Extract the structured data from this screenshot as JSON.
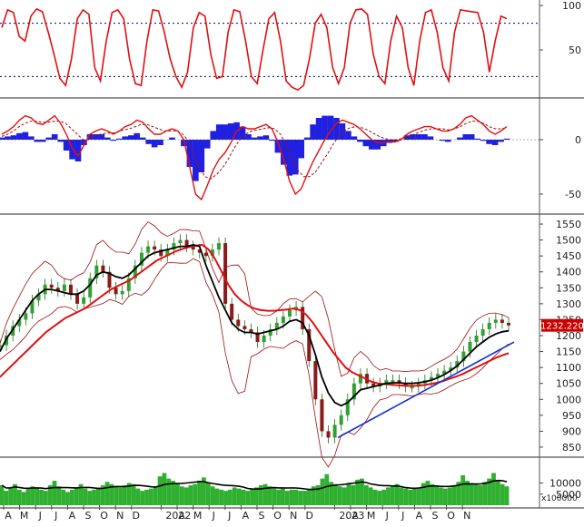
{
  "colors": {
    "background": "#ffffff",
    "separator": "#555555",
    "red_line": "#e01010",
    "dark_red_line": "#a01010",
    "black_line": "#000000",
    "blue_line": "#1030d0",
    "bar_blue": "#2020e0",
    "candle_green": "#30a030",
    "volume_green": "#30b030",
    "dotted": "#000066",
    "price_tag_bg": "#cc0000",
    "price_tag_text": "#ffffff"
  },
  "chart_data": [
    {
      "id": "stochastic",
      "type": "line",
      "y_ticks": [
        "100",
        "50"
      ],
      "ylim": [
        0,
        100
      ],
      "reference_levels": [
        80,
        20
      ],
      "series": [
        {
          "values": [
            75,
            95,
            92,
            65,
            60,
            88,
            96,
            93,
            70,
            45,
            18,
            10,
            40,
            85,
            95,
            90,
            30,
            15,
            60,
            92,
            95,
            85,
            40,
            12,
            10,
            60,
            95,
            94,
            70,
            40,
            20,
            8,
            25,
            75,
            92,
            88,
            45,
            18,
            20,
            70,
            95,
            93,
            60,
            20,
            12,
            50,
            85,
            92,
            60,
            15,
            8,
            5,
            10,
            40,
            80,
            90,
            75,
            30,
            12,
            30,
            80,
            95,
            96,
            90,
            45,
            20,
            12,
            60,
            88,
            75,
            30,
            10,
            60,
            92,
            95,
            70,
            30,
            15,
            70,
            95,
            94,
            93,
            92,
            70,
            25,
            60,
            88,
            85
          ]
        }
      ]
    },
    {
      "id": "macd",
      "type": "line",
      "y_ticks": [
        "0",
        "-50"
      ],
      "ylim": [
        -65,
        35
      ],
      "series": [
        {
          "values": [
            5,
            8,
            12,
            18,
            22,
            20,
            15,
            14,
            18,
            22,
            15,
            5,
            -8,
            -15,
            -5,
            5,
            8,
            10,
            8,
            5,
            8,
            12,
            14,
            18,
            16,
            10,
            5,
            5,
            8,
            10,
            8,
            0,
            -25,
            -50,
            -55,
            -42,
            -28,
            -18,
            -12,
            -3,
            8,
            12,
            10,
            10,
            12,
            14,
            10,
            -2,
            -18,
            -38,
            -50,
            -45,
            -32,
            -20,
            -10,
            0,
            8,
            15,
            18,
            16,
            14,
            10,
            5,
            0,
            -3,
            -3,
            -2,
            -2,
            0,
            5,
            8,
            10,
            12,
            12,
            10,
            8,
            8,
            10,
            14,
            20,
            22,
            18,
            14,
            8,
            5,
            8,
            12
          ]
        },
        {
          "values": [
            3,
            5,
            8,
            12,
            15,
            17,
            17,
            16,
            16,
            17,
            17,
            15,
            10,
            5,
            0,
            0,
            3,
            5,
            6,
            6,
            7,
            9,
            10,
            12,
            14,
            14,
            12,
            10,
            8,
            8,
            8,
            6,
            0,
            -12,
            -25,
            -34,
            -36,
            -32,
            -26,
            -18,
            -8,
            0,
            5,
            8,
            9,
            10,
            11,
            10,
            5,
            -5,
            -18,
            -28,
            -34,
            -34,
            -30,
            -22,
            -14,
            -5,
            3,
            8,
            11,
            12,
            11,
            9,
            6,
            3,
            1,
            0,
            0,
            1,
            3,
            5,
            7,
            9,
            10,
            10,
            10,
            9,
            10,
            12,
            15,
            17,
            17,
            15,
            12,
            10,
            10,
            11
          ]
        },
        {
          "values": [
            2,
            3,
            4,
            6,
            7,
            3,
            -2,
            -2,
            2,
            5,
            -2,
            -10,
            -18,
            -20,
            -5,
            5,
            5,
            5,
            2,
            -1,
            1,
            3,
            4,
            6,
            2,
            -4,
            -7,
            -5,
            0,
            2,
            0,
            -6,
            -25,
            -38,
            -30,
            -8,
            8,
            14,
            14,
            15,
            16,
            12,
            5,
            2,
            3,
            4,
            -1,
            -12,
            -23,
            -33,
            -32,
            -17,
            2,
            14,
            20,
            22,
            22,
            20,
            15,
            8,
            3,
            -2,
            -6,
            -9,
            -9,
            -6,
            -3,
            -2,
            0,
            4,
            5,
            5,
            5,
            3,
            0,
            -1,
            -2,
            0,
            2,
            5,
            5,
            1,
            -1,
            -4,
            -5,
            -2,
            1
          ]
        }
      ]
    },
    {
      "id": "price",
      "type": "line",
      "y_ticks": [
        "1550",
        "1500",
        "1450",
        "1400",
        "1350",
        "1300",
        "1250",
        "1200",
        "1150",
        "1100",
        "1050",
        "1000",
        "950",
        "900",
        "850"
      ],
      "ylim": [
        830,
        1570
      ],
      "last_value_label": "1232.220",
      "x_ticks": [
        "A",
        "M",
        "J",
        "J",
        "A",
        "S",
        "O",
        "N",
        "D",
        "2022",
        "A",
        "M",
        "J",
        "J",
        "A",
        "S",
        "O",
        "N",
        "D",
        "2023",
        "A",
        "M",
        "J",
        "J",
        "A",
        "S",
        "O",
        "N"
      ],
      "series": [
        {
          "values": [
            1170,
            1200,
            1230,
            1250,
            1270,
            1310,
            1330,
            1360,
            1350,
            1340,
            1360,
            1330,
            1300,
            1320,
            1380,
            1420,
            1400,
            1350,
            1330,
            1340,
            1380,
            1420,
            1460,
            1480,
            1470,
            1450,
            1470,
            1490,
            1500,
            1480,
            1470,
            1460,
            1450,
            1470,
            1490,
            1300,
            1250,
            1230,
            1220,
            1210,
            1180,
            1200,
            1220,
            1240,
            1260,
            1280,
            1290,
            1220,
            1120,
            1000,
            900,
            880,
            920,
            950,
            1000,
            1050,
            1080,
            1050,
            1040,
            1050,
            1060,
            1060,
            1050,
            1040,
            1040,
            1050,
            1060,
            1070,
            1080,
            1090,
            1100,
            1120,
            1150,
            1180,
            1200,
            1220,
            1240,
            1250,
            1240,
            1232
          ]
        },
        {
          "values": [
            1150,
            1190,
            1220,
            1250,
            1280,
            1310,
            1330,
            1345,
            1345,
            1340,
            1335,
            1330,
            1330,
            1340,
            1360,
            1390,
            1400,
            1395,
            1385,
            1380,
            1390,
            1410,
            1430,
            1450,
            1460,
            1465,
            1470,
            1475,
            1480,
            1480,
            1485,
            1480,
            1420,
            1370,
            1320,
            1280,
            1240,
            1220,
            1210,
            1210,
            1205,
            1210,
            1215,
            1220,
            1230,
            1245,
            1250,
            1240,
            1200,
            1140,
            1070,
            1020,
            990,
            980,
            990,
            1010,
            1030,
            1035,
            1040,
            1045,
            1050,
            1052,
            1052,
            1050,
            1050,
            1052,
            1055,
            1060,
            1068,
            1078,
            1090,
            1105,
            1125,
            1145,
            1165,
            1180,
            1195,
            1205,
            1212,
            1215
          ]
        },
        {
          "values": [
            1070,
            1090,
            1110,
            1130,
            1150,
            1170,
            1190,
            1210,
            1225,
            1240,
            1255,
            1265,
            1275,
            1285,
            1300,
            1315,
            1330,
            1345,
            1355,
            1365,
            1375,
            1390,
            1405,
            1420,
            1435,
            1445,
            1455,
            1465,
            1472,
            1478,
            1482,
            1485,
            1470,
            1440,
            1400,
            1360,
            1330,
            1310,
            1295,
            1285,
            1280,
            1278,
            1278,
            1280,
            1282,
            1285,
            1280,
            1265,
            1240,
            1210,
            1180,
            1150,
            1125,
            1100,
            1085,
            1075,
            1065,
            1055,
            1050,
            1048,
            1046,
            1044,
            1043,
            1042,
            1043,
            1045,
            1048,
            1052,
            1058,
            1065,
            1072,
            1080,
            1090,
            1100,
            1110,
            1120,
            1130,
            1138,
            1145
          ]
        },
        {
          "values": [
            880,
            1180
          ]
        }
      ]
    },
    {
      "id": "volume",
      "type": "bar",
      "y_ticks": [
        "10000",
        "5000"
      ],
      "unit_label": "x100000",
      "ylim": [
        0,
        20000
      ],
      "values": [
        9000,
        6500,
        8000,
        9500,
        7000,
        6000,
        7500,
        8500,
        8000,
        7000,
        6500,
        9000,
        11000,
        8500,
        7000,
        6000,
        7000,
        8000,
        9500,
        7500,
        6500,
        7000,
        8000,
        9000,
        10500,
        9500,
        8500,
        8000,
        9000,
        10000,
        9500,
        7500,
        6500,
        7000,
        7500,
        8500,
        13000,
        14500,
        12000,
        11000,
        10000,
        8500,
        8000,
        9000,
        9500,
        11000,
        12500,
        10000,
        8500,
        7500,
        7000,
        6500,
        7000,
        8000,
        7500,
        7000,
        6500,
        7500,
        8000,
        9000,
        9500,
        8500,
        7500,
        7000,
        7500,
        6500,
        7000,
        7000,
        6500,
        6500,
        7000,
        8500,
        9000,
        12000,
        14000,
        10500,
        9500,
        8500,
        8000,
        10000,
        9000,
        11500,
        12000,
        9000,
        8000,
        7000,
        6500,
        7000,
        8000,
        8500,
        9500,
        8000,
        7500,
        7000,
        7500,
        8000,
        10000,
        11000,
        9500,
        8500,
        8000,
        7500,
        8000,
        9000,
        10500,
        13500,
        11000,
        10000,
        9500,
        9000,
        10500,
        12000,
        14500,
        11000,
        9500,
        8500
      ]
    }
  ]
}
